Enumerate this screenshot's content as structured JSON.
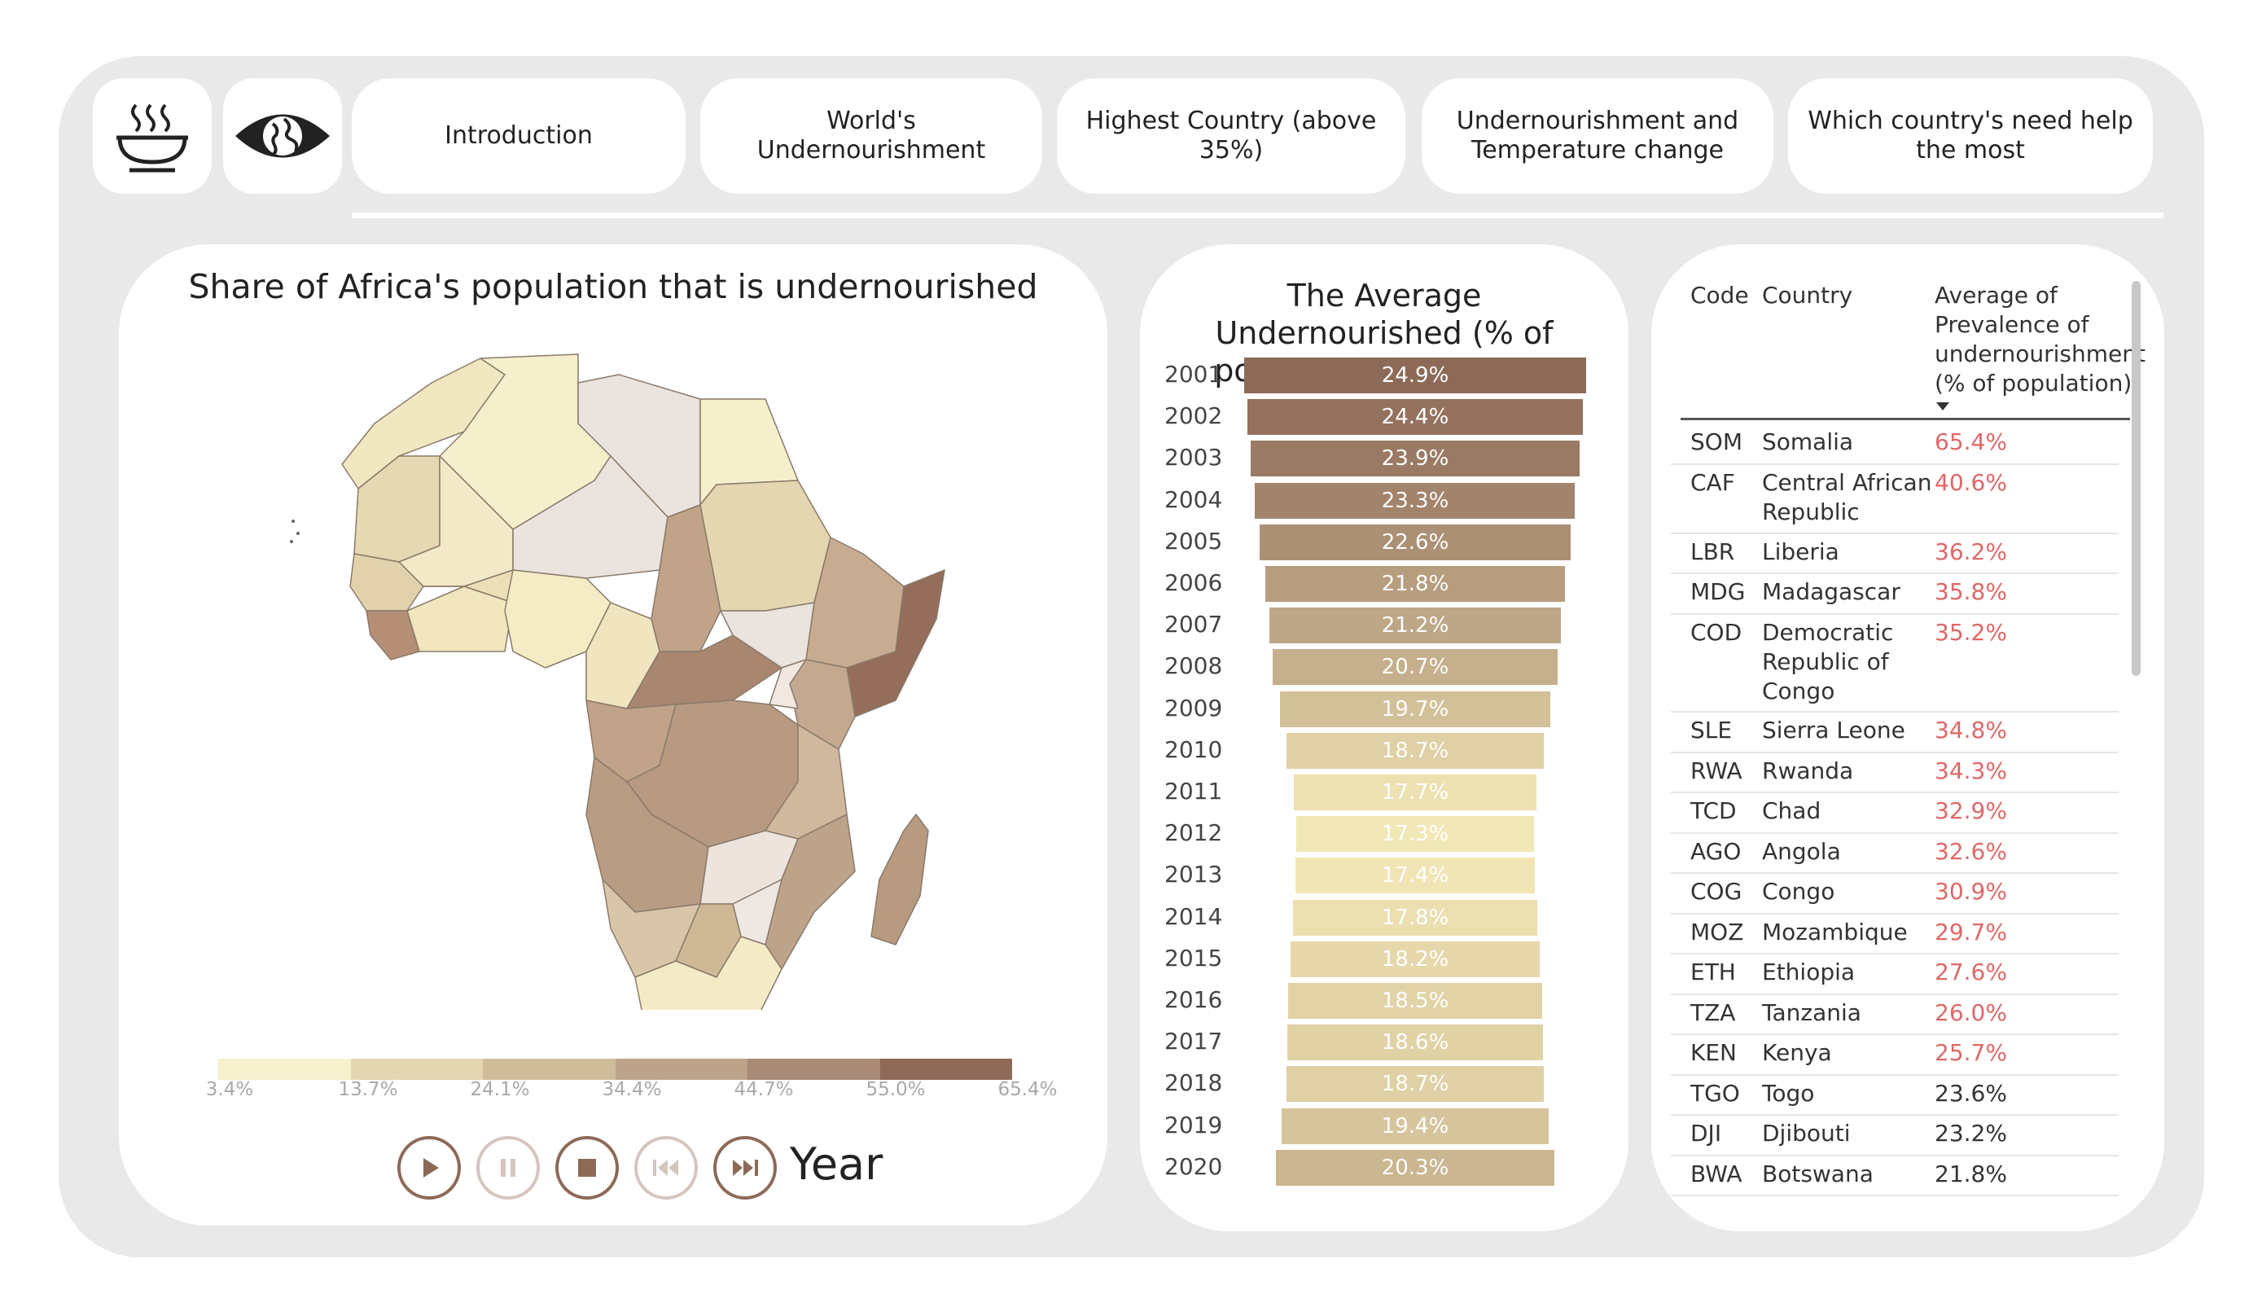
{
  "nav": {
    "tabs": [
      {
        "label": "Introduction"
      },
      {
        "label": "World's Undernourishment"
      },
      {
        "label": "Highest Country (above 35%)"
      },
      {
        "label": "Undernourishment and Temperature change"
      },
      {
        "label": "Which country's need help the most"
      }
    ],
    "icons": [
      "bowl-icon",
      "eye-globe-icon"
    ]
  },
  "map_panel": {
    "title": "Share of Africa's population that is undernourished",
    "legend": {
      "labels": [
        "3.4%",
        "13.7%",
        "24.1%",
        "34.4%",
        "44.7%",
        "55.0%",
        "65.4%"
      ],
      "colors": [
        "#f6f0cc",
        "#e4d6b0",
        "#cfbd9a",
        "#bca38a",
        "#a88a76",
        "#8f6a58"
      ]
    },
    "controls": {
      "year_label": "Year",
      "buttons": [
        "play-icon",
        "pause-icon",
        "stop-icon",
        "skip-back-icon",
        "skip-forward-icon"
      ]
    }
  },
  "chart_data": {
    "type": "bar",
    "title": "The Average Undernourished (% of population) each year",
    "categories": [
      "2001",
      "2002",
      "2003",
      "2004",
      "2005",
      "2006",
      "2007",
      "2008",
      "2009",
      "2010",
      "2011",
      "2012",
      "2013",
      "2014",
      "2015",
      "2016",
      "2017",
      "2018",
      "2019",
      "2020"
    ],
    "values": [
      24.9,
      24.4,
      23.9,
      23.3,
      22.6,
      21.8,
      21.2,
      20.7,
      19.7,
      18.7,
      17.7,
      17.3,
      17.4,
      17.8,
      18.2,
      18.5,
      18.6,
      18.7,
      19.4,
      20.3
    ],
    "labels": [
      "24.9%",
      "24.4%",
      "23.9%",
      "23.3%",
      "22.6%",
      "21.8%",
      "21.2%",
      "20.7%",
      "19.7%",
      "18.7%",
      "17.7%",
      "17.3%",
      "17.4%",
      "17.8%",
      "18.2%",
      "18.5%",
      "18.6%",
      "18.7%",
      "19.4%",
      "20.3%"
    ],
    "orientation": "horizontal-centered",
    "color_scale": {
      "low": "#f2e7b6",
      "high": "#8d6a58"
    }
  },
  "table": {
    "headers": {
      "code": "Code",
      "country": "Country",
      "value_lines": [
        "Average of",
        "Prevalence of",
        "undernourishment",
        "(% of population)"
      ]
    },
    "sort_indicator": "sort-desc-icon",
    "rows": [
      {
        "code": "SOM",
        "country": [
          "Somalia"
        ],
        "value": "65.4%",
        "highlight": true
      },
      {
        "code": "CAF",
        "country": [
          "Central African",
          "Republic"
        ],
        "value": "40.6%",
        "highlight": true
      },
      {
        "code": "LBR",
        "country": [
          "Liberia"
        ],
        "value": "36.2%",
        "highlight": true
      },
      {
        "code": "MDG",
        "country": [
          "Madagascar"
        ],
        "value": "35.8%",
        "highlight": true
      },
      {
        "code": "COD",
        "country": [
          "Democratic",
          "Republic of",
          "Congo"
        ],
        "value": "35.2%",
        "highlight": true
      },
      {
        "code": "SLE",
        "country": [
          "Sierra Leone"
        ],
        "value": "34.8%",
        "highlight": true
      },
      {
        "code": "RWA",
        "country": [
          "Rwanda"
        ],
        "value": "34.3%",
        "highlight": true
      },
      {
        "code": "TCD",
        "country": [
          "Chad"
        ],
        "value": "32.9%",
        "highlight": true
      },
      {
        "code": "AGO",
        "country": [
          "Angola"
        ],
        "value": "32.6%",
        "highlight": true
      },
      {
        "code": "COG",
        "country": [
          "Congo"
        ],
        "value": "30.9%",
        "highlight": true
      },
      {
        "code": "MOZ",
        "country": [
          "Mozambique"
        ],
        "value": "29.7%",
        "highlight": true
      },
      {
        "code": "ETH",
        "country": [
          "Ethiopia"
        ],
        "value": "27.6%",
        "highlight": true
      },
      {
        "code": "TZA",
        "country": [
          "Tanzania"
        ],
        "value": "26.0%",
        "highlight": true
      },
      {
        "code": "KEN",
        "country": [
          "Kenya"
        ],
        "value": "25.7%",
        "highlight": true
      },
      {
        "code": "TGO",
        "country": [
          "Togo"
        ],
        "value": "23.6%",
        "highlight": false
      },
      {
        "code": "DJI",
        "country": [
          "Djibouti"
        ],
        "value": "23.2%",
        "highlight": false
      },
      {
        "code": "BWA",
        "country": [
          "Botswana"
        ],
        "value": "21.8%",
        "highlight": false
      }
    ],
    "highlight_color": "#e06767"
  }
}
